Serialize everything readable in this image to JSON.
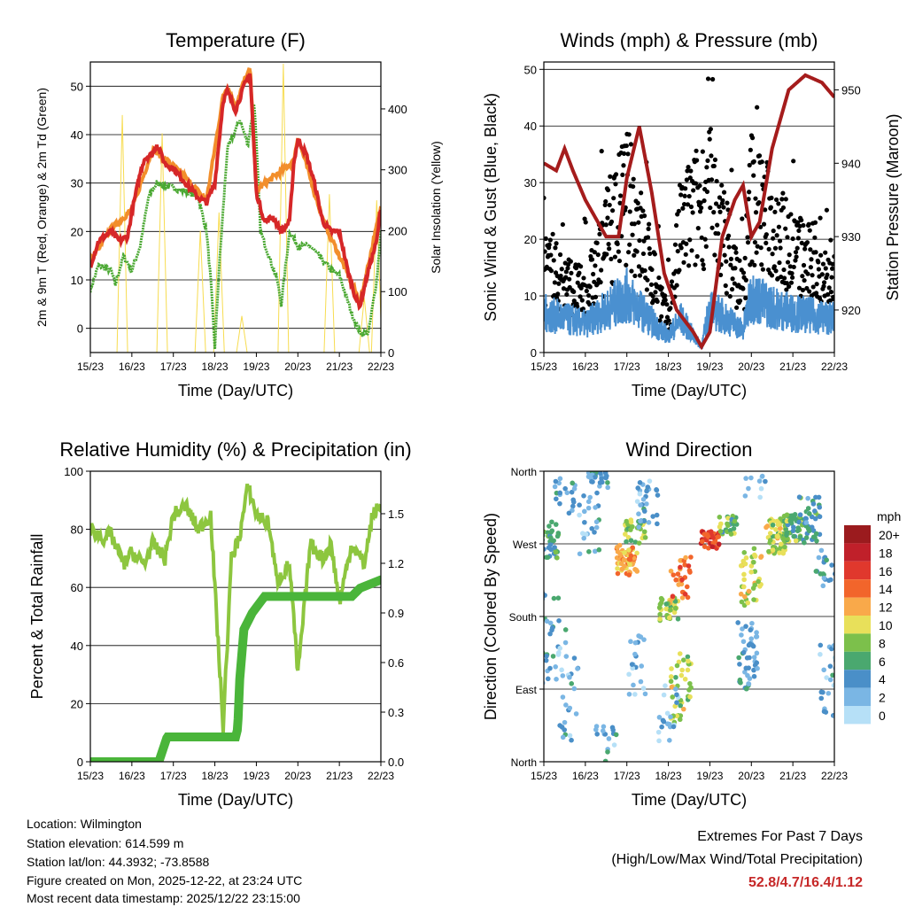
{
  "xticks": [
    "15/23",
    "16/23",
    "17/23",
    "18/23",
    "19/23",
    "20/23",
    "21/23",
    "22/23"
  ],
  "chart_data": [
    {
      "type": "line",
      "title": "Temperature (F)",
      "xlabel": "Time (Day/UTC)",
      "ylabel": "2m & 9m T (Red, Orange) & 2m Td (Green)",
      "y2label": "Solar Insolation (Yellow)",
      "ylim": [
        -5,
        55
      ],
      "y2lim": [
        0,
        477
      ],
      "yticks": [
        "0",
        "10",
        "20",
        "30",
        "40",
        "50"
      ],
      "y2ticks": [
        "0",
        "100",
        "200",
        "300",
        "400"
      ],
      "ytickvals": [
        0,
        10,
        20,
        30,
        40,
        50
      ],
      "y2tickvals": [
        0,
        100,
        200,
        300,
        400
      ],
      "series": [
        {
          "name": "2m T",
          "color": "#d62728",
          "points": [
            [
              0,
              13
            ],
            [
              0.2,
              18
            ],
            [
              0.5,
              20
            ],
            [
              0.7,
              18
            ],
            [
              0.9,
              19
            ],
            [
              1,
              24
            ],
            [
              1.2,
              32
            ],
            [
              1.3,
              35
            ],
            [
              1.5,
              36
            ],
            [
              1.6,
              38
            ],
            [
              1.8,
              34
            ],
            [
              2,
              33
            ],
            [
              2.3,
              30
            ],
            [
              2.6,
              27
            ],
            [
              2.8,
              26
            ],
            [
              3,
              30
            ],
            [
              3.2,
              47
            ],
            [
              3.3,
              49
            ],
            [
              3.5,
              45
            ],
            [
              3.7,
              50
            ],
            [
              3.85,
              52.8
            ],
            [
              4,
              28
            ],
            [
              4.2,
              22
            ],
            [
              4.4,
              23
            ],
            [
              4.6,
              20
            ],
            [
              4.8,
              22
            ],
            [
              4.9,
              34
            ],
            [
              5,
              39
            ],
            [
              5.2,
              36
            ],
            [
              5.4,
              30
            ],
            [
              5.6,
              22
            ],
            [
              5.8,
              20
            ],
            [
              6,
              20
            ],
            [
              6.2,
              12
            ],
            [
              6.4,
              6
            ],
            [
              6.5,
              4.7
            ],
            [
              6.7,
              12
            ],
            [
              6.9,
              18
            ],
            [
              7,
              25
            ]
          ]
        },
        {
          "name": "9m T",
          "color": "#f28e2b",
          "points": [
            [
              0,
              14
            ],
            [
              0.5,
              20.5
            ],
            [
              1,
              24.5
            ],
            [
              1.5,
              37
            ],
            [
              2,
              33.5
            ],
            [
              2.8,
              26.5
            ],
            [
              3.2,
              48
            ],
            [
              3.3,
              50
            ],
            [
              3.5,
              46
            ],
            [
              3.7,
              51
            ],
            [
              3.85,
              53.5
            ],
            [
              4,
              28.5
            ],
            [
              4.9,
              34.5
            ],
            [
              5,
              39.5
            ],
            [
              5.6,
              22.5
            ],
            [
              6.5,
              5.5
            ],
            [
              7,
              25
            ]
          ]
        },
        {
          "name": "2m Td",
          "color": "#4aa832",
          "points": [
            [
              0,
              8
            ],
            [
              0.2,
              13
            ],
            [
              0.5,
              12
            ],
            [
              0.6,
              9
            ],
            [
              0.8,
              15
            ],
            [
              1,
              12
            ],
            [
              1.2,
              17
            ],
            [
              1.4,
              27
            ],
            [
              1.6,
              30
            ],
            [
              2,
              29
            ],
            [
              2.4,
              28
            ],
            [
              2.6,
              27
            ],
            [
              2.8,
              20
            ],
            [
              2.9,
              10
            ],
            [
              3,
              -4
            ],
            [
              3.1,
              12
            ],
            [
              3.3,
              37
            ],
            [
              3.6,
              43
            ],
            [
              3.8,
              38
            ],
            [
              3.95,
              47
            ],
            [
              4.1,
              20
            ],
            [
              4.3,
              15
            ],
            [
              4.5,
              10
            ],
            [
              4.6,
              5
            ],
            [
              4.8,
              20
            ],
            [
              5,
              17
            ],
            [
              5.3,
              17
            ],
            [
              5.5,
              15
            ],
            [
              5.8,
              12
            ],
            [
              6,
              11
            ],
            [
              6.3,
              3
            ],
            [
              6.5,
              -1
            ],
            [
              6.7,
              -1
            ],
            [
              6.9,
              10
            ],
            [
              7,
              20
            ]
          ]
        },
        {
          "name": "Solar",
          "color": "#f7dc50",
          "axis": "right",
          "spikes": [
            [
              0.77,
              390
            ],
            [
              1.73,
              360
            ],
            [
              2.65,
              200
            ],
            [
              3.1,
              230
            ],
            [
              3.65,
              60
            ],
            [
              4.65,
              474
            ],
            [
              5.76,
              260
            ],
            [
              6.6,
              90
            ],
            [
              6.9,
              250
            ]
          ]
        }
      ]
    },
    {
      "type": "scatter+line",
      "title": "Winds (mph) & Pressure (mb)",
      "xlabel": "Time (Day/UTC)",
      "ylabel": "Sonic Wind & Gust (Blue, Black)",
      "y2label": "Station Pressure (Maroon)",
      "ylim": [
        0,
        51.3
      ],
      "y2lim": [
        914.2,
        953.8
      ],
      "yticks": [
        "0",
        "10",
        "20",
        "30",
        "40",
        "50"
      ],
      "y2ticks": [
        "920",
        "930",
        "940",
        "950"
      ],
      "ytickvals": [
        0,
        10,
        20,
        30,
        40,
        50
      ],
      "y2tickvals": [
        920,
        930,
        940,
        950
      ],
      "pressure": [
        [
          0,
          940
        ],
        [
          0.3,
          939
        ],
        [
          0.5,
          942
        ],
        [
          0.7,
          939
        ],
        [
          1,
          935
        ],
        [
          1.5,
          930
        ],
        [
          1.8,
          930
        ],
        [
          2,
          938
        ],
        [
          2.3,
          945
        ],
        [
          2.6,
          936
        ],
        [
          2.9,
          925
        ],
        [
          3.2,
          920
        ],
        [
          3.6,
          917
        ],
        [
          3.8,
          915
        ],
        [
          4,
          917
        ],
        [
          4.3,
          930
        ],
        [
          4.6,
          935
        ],
        [
          4.8,
          937
        ],
        [
          5,
          930
        ],
        [
          5.2,
          932
        ],
        [
          5.5,
          942
        ],
        [
          5.9,
          950
        ],
        [
          6.3,
          952
        ],
        [
          6.7,
          951
        ],
        [
          7,
          949
        ]
      ],
      "gust_mean": [
        [
          0,
          15
        ],
        [
          1,
          10
        ],
        [
          2,
          28
        ],
        [
          2.8,
          10
        ],
        [
          3,
          5
        ],
        [
          3.3,
          22
        ],
        [
          4,
          28
        ],
        [
          4.8,
          10
        ],
        [
          5,
          28
        ],
        [
          5.5,
          22
        ],
        [
          6,
          18
        ],
        [
          7,
          12
        ]
      ],
      "wind_mean": [
        [
          0,
          7
        ],
        [
          1,
          5
        ],
        [
          2,
          10
        ],
        [
          2.8,
          4
        ],
        [
          3,
          3
        ],
        [
          3.3,
          6
        ],
        [
          3.8,
          1
        ],
        [
          4,
          8
        ],
        [
          4.8,
          4
        ],
        [
          5,
          10
        ],
        [
          5.5,
          8
        ],
        [
          6,
          7
        ],
        [
          7,
          6
        ]
      ],
      "colors": {
        "wind": "#4a90d0",
        "gust": "#000000",
        "pressure": "#a51c1c"
      }
    },
    {
      "type": "line",
      "title": "Relative Humidity (%) & Precipitation (in)",
      "xlabel": "Time (Day/UTC)",
      "ylabel": "Percent & Total Rainfall",
      "ylim": [
        0,
        100
      ],
      "y2lim": [
        0,
        1.757
      ],
      "yticks": [
        "0",
        "20",
        "40",
        "60",
        "80",
        "100"
      ],
      "y2ticks": [
        "0.0",
        "0.3",
        "0.6",
        "0.9",
        "1.2",
        "1.5"
      ],
      "ytickvals": [
        0,
        20,
        40,
        60,
        80,
        100
      ],
      "y2tickvals": [
        0,
        0.3,
        0.6,
        0.9,
        1.2,
        1.5
      ],
      "series": [
        {
          "name": "RH",
          "color": "#8dc63f",
          "points": [
            [
              0,
              80
            ],
            [
              0.3,
              77
            ],
            [
              0.5,
              78
            ],
            [
              0.8,
              68
            ],
            [
              1,
              72
            ],
            [
              1.3,
              68
            ],
            [
              1.5,
              75
            ],
            [
              1.8,
              70
            ],
            [
              2,
              85
            ],
            [
              2.3,
              88
            ],
            [
              2.6,
              80
            ],
            [
              2.9,
              85
            ],
            [
              3,
              60
            ],
            [
              3.2,
              12
            ],
            [
              3.4,
              70
            ],
            [
              3.6,
              78
            ],
            [
              3.8,
              95
            ],
            [
              4,
              85
            ],
            [
              4.3,
              82
            ],
            [
              4.5,
              62
            ],
            [
              4.8,
              68
            ],
            [
              5,
              30
            ],
            [
              5.3,
              75
            ],
            [
              5.6,
              70
            ],
            [
              5.8,
              75
            ],
            [
              6,
              55
            ],
            [
              6.3,
              75
            ],
            [
              6.6,
              68
            ],
            [
              6.8,
              85
            ],
            [
              7,
              88
            ]
          ]
        },
        {
          "name": "Precip",
          "color": "#4ab53a",
          "axis": "right",
          "points": [
            [
              0,
              0
            ],
            [
              1.65,
              0
            ],
            [
              1.85,
              0.15
            ],
            [
              3.5,
              0.15
            ],
            [
              3.55,
              0.2
            ],
            [
              3.6,
              0.5
            ],
            [
              3.7,
              0.8
            ],
            [
              3.9,
              0.9
            ],
            [
              4.2,
              1.0
            ],
            [
              6.3,
              1.0
            ],
            [
              6.5,
              1.05
            ],
            [
              7,
              1.1
            ]
          ]
        }
      ]
    },
    {
      "type": "scatter",
      "title": "Wind Direction",
      "xlabel": "Time (Day/UTC)",
      "ylabel": "Direction (Colored By Speed)",
      "ylim": [
        0,
        360
      ],
      "yticks": [
        "North",
        "East",
        "South",
        "West",
        "North"
      ],
      "ytickvals": [
        0,
        90,
        180,
        270,
        360
      ],
      "legend": {
        "title": "mph",
        "labels": [
          "20+",
          "18",
          "16",
          "14",
          "12",
          "10",
          "8",
          "6",
          "4",
          "2",
          "0"
        ],
        "colors": [
          "#9b1b1e",
          "#c0202a",
          "#e0382d",
          "#f2652b",
          "#f9a94a",
          "#e8e05a",
          "#7cc04b",
          "#4aa86f",
          "#4a8fc8",
          "#7ab6e4",
          "#b6e0f7"
        ]
      },
      "clusters": [
        [
          0.1,
          275,
          30,
          6,
          40
        ],
        [
          0.1,
          150,
          80,
          4,
          30
        ],
        [
          0.5,
          330,
          30,
          3,
          20
        ],
        [
          0.6,
          100,
          100,
          3,
          30
        ],
        [
          1.1,
          290,
          60,
          3,
          25
        ],
        [
          1.3,
          350,
          15,
          4,
          25
        ],
        [
          1.5,
          30,
          25,
          3,
          15
        ],
        [
          2.0,
          250,
          25,
          12,
          60
        ],
        [
          2.2,
          285,
          20,
          8,
          30
        ],
        [
          2.5,
          320,
          40,
          3,
          30
        ],
        [
          2.3,
          120,
          50,
          2,
          20
        ],
        [
          3.0,
          190,
          20,
          9,
          40
        ],
        [
          3.3,
          230,
          40,
          14,
          30
        ],
        [
          3.3,
          90,
          60,
          9,
          40
        ],
        [
          3.0,
          60,
          50,
          2,
          20
        ],
        [
          4.0,
          275,
          15,
          16,
          40
        ],
        [
          4.4,
          290,
          20,
          7,
          25
        ],
        [
          4.9,
          130,
          60,
          3,
          45
        ],
        [
          5,
          230,
          50,
          10,
          40
        ],
        [
          5.1,
          340,
          20,
          2,
          10
        ],
        [
          5.6,
          280,
          30,
          9,
          60
        ],
        [
          6.0,
          290,
          25,
          7,
          50
        ],
        [
          6.4,
          300,
          40,
          5,
          40
        ],
        [
          6.8,
          240,
          30,
          4,
          20
        ],
        [
          6.9,
          100,
          60,
          3,
          30
        ]
      ]
    }
  ],
  "footer": {
    "location": "Location: Wilmington",
    "elevation": "Station elevation: 614.599 m",
    "latlon": "Station lat/lon: 44.3932; -73.8588",
    "created": "Figure created on Mon, 2025-12-22, at 23:24 UTC",
    "timestamp": "Most recent data timestamp: 2025/12/22 23:15:00"
  },
  "extremes": {
    "title": "Extremes For Past 7 Days",
    "subtitle": "(High/Low/Max Wind/Total Precipitation)",
    "values": "52.8/4.7/16.4/1.12",
    "color": "#c62828"
  }
}
